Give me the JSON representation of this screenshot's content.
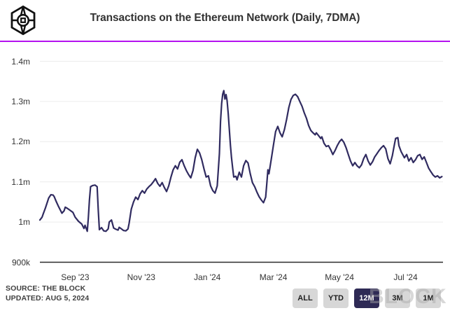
{
  "header": {
    "title": "Transactions on the Ethereum Network (Daily, 7DMA)",
    "logo": "the-block-cube-logo"
  },
  "footer": {
    "source_line1": "SOURCE: THE BLOCK",
    "source_line2": "UPDATED: AUG 5, 2024",
    "watermark_text": "BLOCK"
  },
  "time_range_buttons": [
    {
      "label": "ALL",
      "active": false
    },
    {
      "label": "YTD",
      "active": false
    },
    {
      "label": "12M",
      "active": true
    },
    {
      "label": "3M",
      "active": false
    },
    {
      "label": "1M",
      "active": false
    }
  ],
  "colors": {
    "accent_purple": "#b412ef",
    "line": "#302b60",
    "grid": "#ececec",
    "axis": "#2b2b2b",
    "button_bg": "#d7d7d7",
    "button_text": "#1f1f1f",
    "active_button_bg": "#2e2a55",
    "active_button_text": "#ffffff",
    "tick_text": "#333333",
    "title_text": "#333333",
    "source_text": "#3f3f3f"
  },
  "chart_data": {
    "type": "line",
    "title": "Transactions on the Ethereum Network (Daily, 7DMA)",
    "xlabel": "",
    "ylabel": "",
    "unit": "transactions per day (millions), 7-day moving average",
    "x_unit": "days since 2023-08-05",
    "xlim_days": [
      0,
      366
    ],
    "ylim": [
      0.9,
      1.4
    ],
    "grid": true,
    "legend": false,
    "y_ticks": [
      {
        "v": 1.4,
        "label": "1.4m"
      },
      {
        "v": 1.3,
        "label": "1.3m"
      },
      {
        "v": 1.2,
        "label": "1.2m"
      },
      {
        "v": 1.1,
        "label": "1.1m"
      },
      {
        "v": 1.0,
        "label": "1m"
      },
      {
        "v": 0.9,
        "label": "900k"
      }
    ],
    "x_ticks": [
      {
        "day": 32,
        "label": "Sep '23"
      },
      {
        "day": 92,
        "label": "Nov '23"
      },
      {
        "day": 152,
        "label": "Jan '24"
      },
      {
        "day": 212,
        "label": "Mar '24"
      },
      {
        "day": 272,
        "label": "May '24"
      },
      {
        "day": 332,
        "label": "Jul '24"
      }
    ],
    "series": [
      {
        "name": "Ethereum daily transactions (7DMA)",
        "points": [
          [
            0,
            1.005
          ],
          [
            2,
            1.012
          ],
          [
            3,
            1.02
          ],
          [
            5,
            1.035
          ],
          [
            8,
            1.06
          ],
          [
            10,
            1.068
          ],
          [
            12,
            1.067
          ],
          [
            13,
            1.063
          ],
          [
            15,
            1.05
          ],
          [
            17,
            1.038
          ],
          [
            20,
            1.022
          ],
          [
            22,
            1.028
          ],
          [
            23,
            1.037
          ],
          [
            25,
            1.034
          ],
          [
            27,
            1.03
          ],
          [
            30,
            1.024
          ],
          [
            32,
            1.012
          ],
          [
            35,
            1.002
          ],
          [
            38,
            0.995
          ],
          [
            40,
            0.984
          ],
          [
            41,
            0.992
          ],
          [
            43,
            0.977
          ],
          [
            44,
            1.01
          ],
          [
            45,
            1.055
          ],
          [
            46,
            1.088
          ],
          [
            48,
            1.091
          ],
          [
            50,
            1.092
          ],
          [
            52,
            1.088
          ],
          [
            53,
            1.03
          ],
          [
            54,
            0.981
          ],
          [
            56,
            0.986
          ],
          [
            58,
            0.978
          ],
          [
            60,
            0.977
          ],
          [
            62,
            0.983
          ],
          [
            63,
            1.0
          ],
          [
            65,
            1.005
          ],
          [
            67,
            0.985
          ],
          [
            69,
            0.982
          ],
          [
            71,
            0.98
          ],
          [
            72,
            0.987
          ],
          [
            74,
            0.983
          ],
          [
            76,
            0.979
          ],
          [
            78,
            0.978
          ],
          [
            80,
            0.983
          ],
          [
            81,
            0.997
          ],
          [
            83,
            1.032
          ],
          [
            85,
            1.05
          ],
          [
            87,
            1.062
          ],
          [
            89,
            1.056
          ],
          [
            91,
            1.07
          ],
          [
            93,
            1.078
          ],
          [
            95,
            1.072
          ],
          [
            97,
            1.082
          ],
          [
            99,
            1.088
          ],
          [
            101,
            1.093
          ],
          [
            103,
            1.1
          ],
          [
            105,
            1.108
          ],
          [
            107,
            1.096
          ],
          [
            109,
            1.089
          ],
          [
            111,
            1.098
          ],
          [
            113,
            1.086
          ],
          [
            115,
            1.076
          ],
          [
            117,
            1.09
          ],
          [
            119,
            1.112
          ],
          [
            121,
            1.13
          ],
          [
            123,
            1.14
          ],
          [
            125,
            1.132
          ],
          [
            127,
            1.149
          ],
          [
            129,
            1.155
          ],
          [
            131,
            1.14
          ],
          [
            133,
            1.128
          ],
          [
            135,
            1.118
          ],
          [
            137,
            1.11
          ],
          [
            139,
            1.128
          ],
          [
            141,
            1.16
          ],
          [
            143,
            1.181
          ],
          [
            145,
            1.172
          ],
          [
            147,
            1.155
          ],
          [
            149,
            1.132
          ],
          [
            151,
            1.112
          ],
          [
            153,
            1.115
          ],
          [
            155,
            1.09
          ],
          [
            157,
            1.078
          ],
          [
            159,
            1.072
          ],
          [
            161,
            1.09
          ],
          [
            163,
            1.17
          ],
          [
            164,
            1.25
          ],
          [
            165,
            1.295
          ],
          [
            166,
            1.318
          ],
          [
            167,
            1.327
          ],
          [
            168,
            1.306
          ],
          [
            169,
            1.317
          ],
          [
            170,
            1.302
          ],
          [
            171,
            1.27
          ],
          [
            172,
            1.23
          ],
          [
            173,
            1.19
          ],
          [
            174,
            1.16
          ],
          [
            175,
            1.135
          ],
          [
            176,
            1.112
          ],
          [
            178,
            1.114
          ],
          [
            179,
            1.105
          ],
          [
            181,
            1.124
          ],
          [
            183,
            1.112
          ],
          [
            185,
            1.14
          ],
          [
            187,
            1.153
          ],
          [
            189,
            1.147
          ],
          [
            191,
            1.12
          ],
          [
            193,
            1.098
          ],
          [
            195,
            1.088
          ],
          [
            197,
            1.075
          ],
          [
            199,
            1.063
          ],
          [
            201,
            1.055
          ],
          [
            203,
            1.048
          ],
          [
            205,
            1.062
          ],
          [
            206,
            1.095
          ],
          [
            207,
            1.13
          ],
          [
            208,
            1.12
          ],
          [
            210,
            1.155
          ],
          [
            212,
            1.19
          ],
          [
            214,
            1.225
          ],
          [
            216,
            1.238
          ],
          [
            218,
            1.222
          ],
          [
            220,
            1.212
          ],
          [
            222,
            1.23
          ],
          [
            224,
            1.255
          ],
          [
            226,
            1.285
          ],
          [
            228,
            1.305
          ],
          [
            230,
            1.315
          ],
          [
            232,
            1.318
          ],
          [
            234,
            1.312
          ],
          [
            236,
            1.3
          ],
          [
            238,
            1.288
          ],
          [
            240,
            1.272
          ],
          [
            242,
            1.258
          ],
          [
            244,
            1.24
          ],
          [
            246,
            1.228
          ],
          [
            248,
            1.222
          ],
          [
            250,
            1.217
          ],
          [
            251,
            1.222
          ],
          [
            253,
            1.215
          ],
          [
            255,
            1.208
          ],
          [
            256,
            1.212
          ],
          [
            258,
            1.196
          ],
          [
            260,
            1.188
          ],
          [
            262,
            1.19
          ],
          [
            264,
            1.18
          ],
          [
            266,
            1.168
          ],
          [
            268,
            1.178
          ],
          [
            270,
            1.19
          ],
          [
            272,
            1.2
          ],
          [
            274,
            1.206
          ],
          [
            276,
            1.198
          ],
          [
            278,
            1.185
          ],
          [
            280,
            1.168
          ],
          [
            282,
            1.152
          ],
          [
            284,
            1.14
          ],
          [
            286,
            1.148
          ],
          [
            288,
            1.14
          ],
          [
            290,
            1.135
          ],
          [
            292,
            1.142
          ],
          [
            294,
            1.158
          ],
          [
            296,
            1.168
          ],
          [
            298,
            1.152
          ],
          [
            300,
            1.142
          ],
          [
            302,
            1.15
          ],
          [
            304,
            1.162
          ],
          [
            306,
            1.17
          ],
          [
            308,
            1.178
          ],
          [
            310,
            1.185
          ],
          [
            312,
            1.19
          ],
          [
            314,
            1.182
          ],
          [
            316,
            1.158
          ],
          [
            318,
            1.145
          ],
          [
            320,
            1.165
          ],
          [
            322,
            1.195
          ],
          [
            323,
            1.208
          ],
          [
            325,
            1.21
          ],
          [
            326,
            1.19
          ],
          [
            328,
            1.175
          ],
          [
            330,
            1.165
          ],
          [
            331,
            1.16
          ],
          [
            333,
            1.168
          ],
          [
            335,
            1.152
          ],
          [
            337,
            1.16
          ],
          [
            339,
            1.148
          ],
          [
            341,
            1.155
          ],
          [
            343,
            1.165
          ],
          [
            345,
            1.168
          ],
          [
            347,
            1.156
          ],
          [
            349,
            1.162
          ],
          [
            351,
            1.148
          ],
          [
            353,
            1.134
          ],
          [
            355,
            1.125
          ],
          [
            357,
            1.117
          ],
          [
            359,
            1.112
          ],
          [
            361,
            1.115
          ],
          [
            363,
            1.11
          ],
          [
            365,
            1.113
          ]
        ]
      }
    ]
  }
}
